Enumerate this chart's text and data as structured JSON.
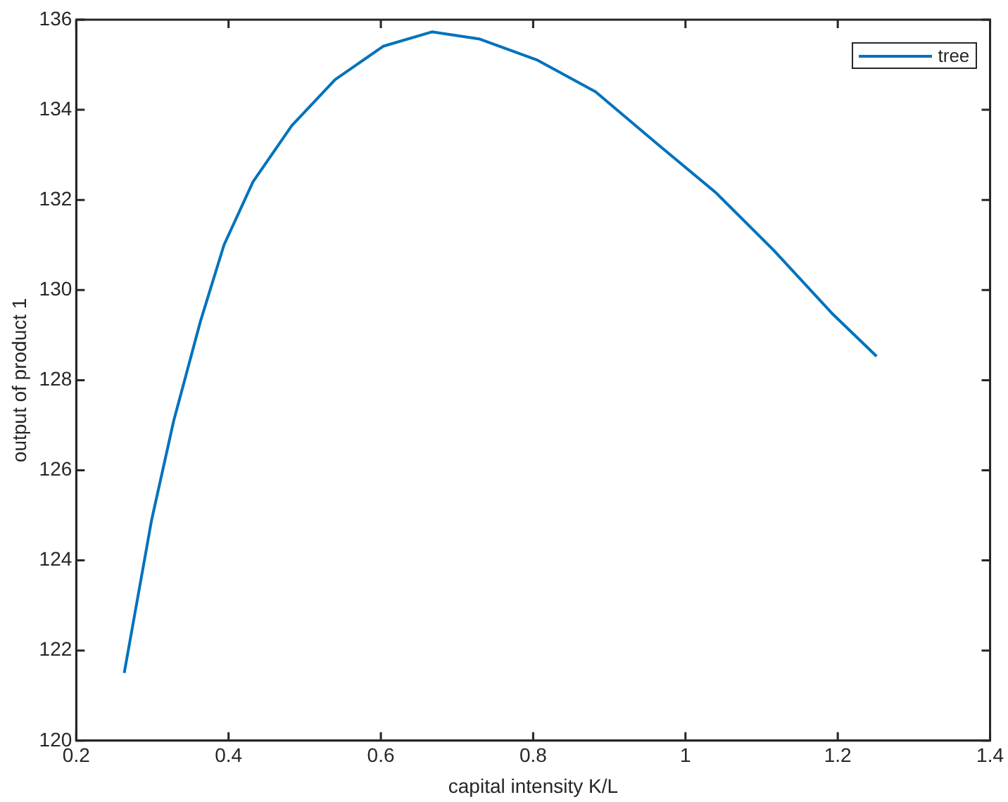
{
  "chart_data": {
    "type": "line",
    "xlabel": "capital intensity K/L",
    "ylabel": "output of product 1",
    "series": [
      {
        "name": "tree",
        "color": "#0072bd",
        "x": [
          0.263,
          0.299,
          0.328,
          0.363,
          0.394,
          0.432,
          0.483,
          0.54,
          0.603,
          0.667,
          0.73,
          0.806,
          0.882,
          0.964,
          1.04,
          1.116,
          1.192,
          1.251
        ],
        "values": [
          121.5,
          124.9,
          127.1,
          129.3,
          131.0,
          132.4,
          133.65,
          134.67,
          135.41,
          135.73,
          135.57,
          135.1,
          134.4,
          133.23,
          132.16,
          130.88,
          129.49,
          128.53
        ]
      }
    ],
    "xlim": [
      0.2,
      1.4
    ],
    "xticks": [
      0.2,
      0.4,
      0.6,
      0.8,
      1,
      1.2,
      1.4
    ],
    "ylim": [
      120,
      136
    ],
    "yticks": [
      120,
      122,
      124,
      126,
      128,
      130,
      132,
      134,
      136
    ],
    "grid": false,
    "legend": "top right"
  }
}
